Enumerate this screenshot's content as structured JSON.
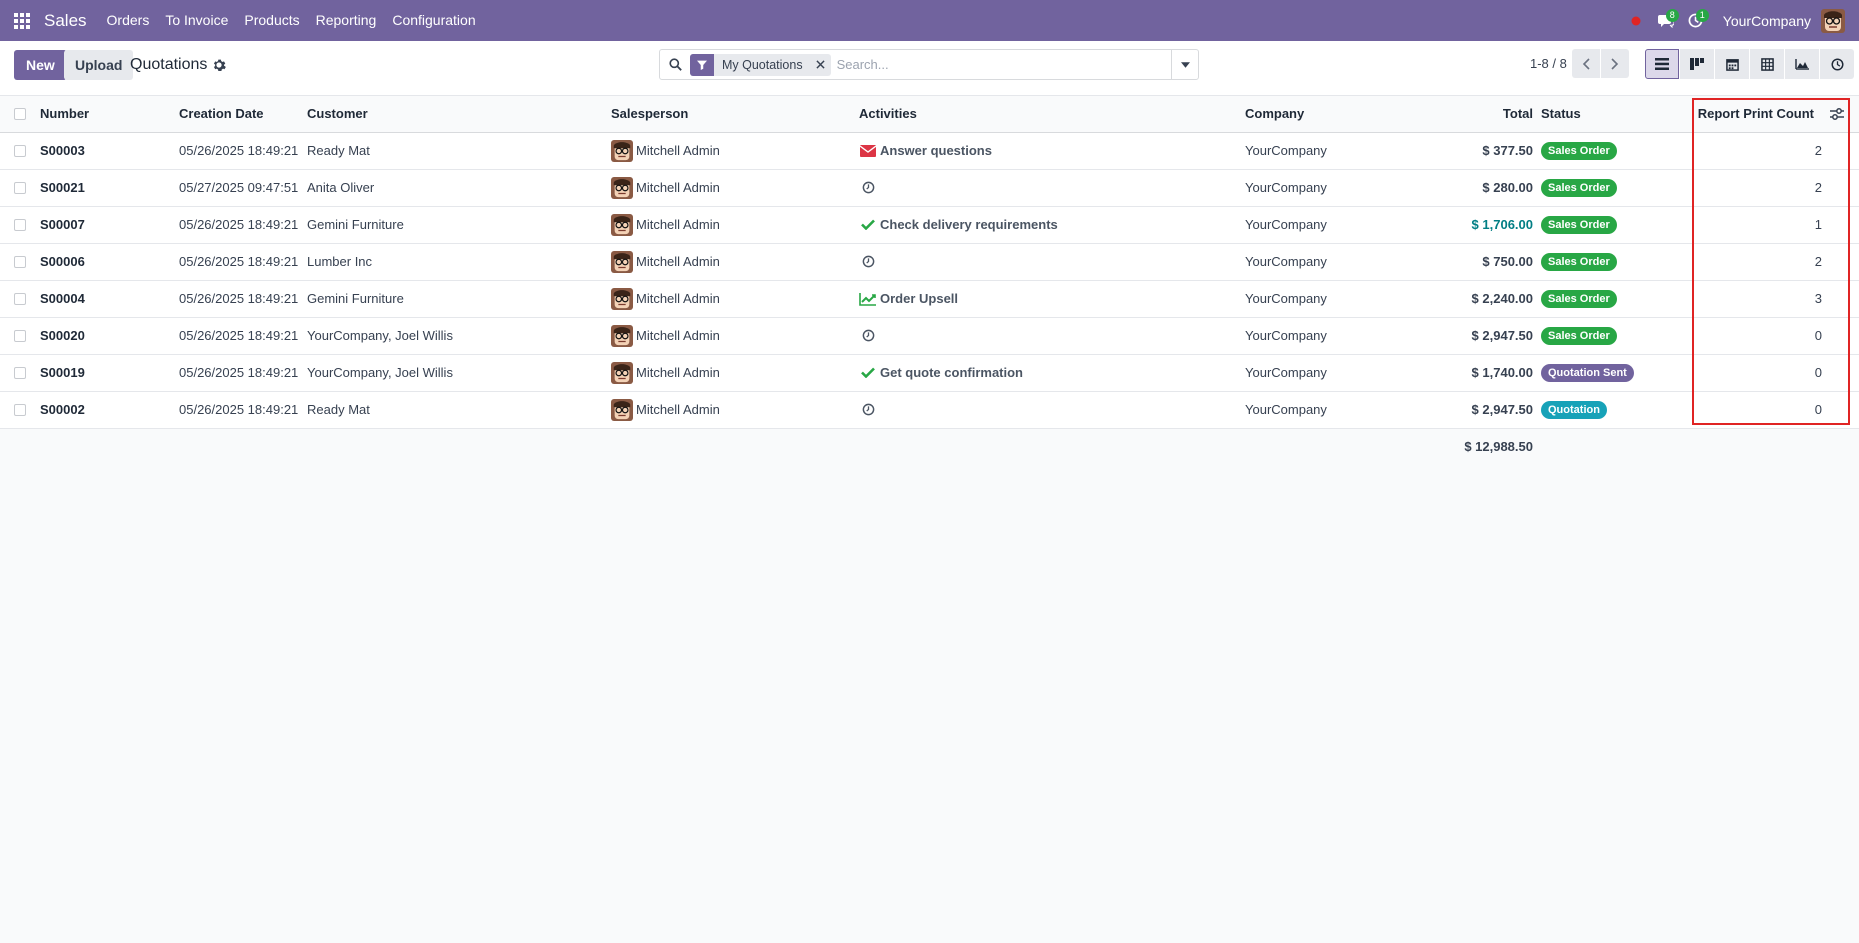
{
  "navbar": {
    "app_name": "Sales",
    "menu": [
      "Orders",
      "To Invoice",
      "Products",
      "Reporting",
      "Configuration"
    ],
    "messages_count": "8",
    "activities_count": "1",
    "company": "YourCompany"
  },
  "control_panel": {
    "new_label": "New",
    "upload_label": "Upload",
    "title": "Quotations",
    "search": {
      "facet_label": "My Quotations",
      "placeholder": "Search..."
    },
    "pager": "1-8 / 8"
  },
  "table": {
    "headers": {
      "number": "Number",
      "creation_date": "Creation Date",
      "customer": "Customer",
      "salesperson": "Salesperson",
      "activities": "Activities",
      "company": "Company",
      "total": "Total",
      "status": "Status",
      "report_print_count": "Report Print Count"
    },
    "rows": [
      {
        "number": "S00003",
        "date": "05/26/2025 18:49:21",
        "customer": "Ready Mat",
        "salesperson": "Mitchell Admin",
        "activity": "Answer questions",
        "activity_icon": "envelope-icon",
        "company": "YourCompany",
        "total": "$ 377.50",
        "status": "Sales Order",
        "count": "2"
      },
      {
        "number": "S00021",
        "date": "05/27/2025 09:47:51",
        "customer": "Anita Oliver",
        "salesperson": "Mitchell Admin",
        "activity": "",
        "activity_icon": "clock-icon",
        "company": "YourCompany",
        "total": "$ 280.00",
        "status": "Sales Order",
        "count": "2"
      },
      {
        "number": "S00007",
        "date": "05/26/2025 18:49:21",
        "customer": "Gemini Furniture",
        "salesperson": "Mitchell Admin",
        "activity": "Check delivery requirements",
        "activity_icon": "check-icon",
        "company": "YourCompany",
        "total": "$ 1,706.00",
        "status": "Sales Order",
        "count": "1"
      },
      {
        "number": "S00006",
        "date": "05/26/2025 18:49:21",
        "customer": "Lumber Inc",
        "salesperson": "Mitchell Admin",
        "activity": "",
        "activity_icon": "clock-icon",
        "company": "YourCompany",
        "total": "$ 750.00",
        "status": "Sales Order",
        "count": "2"
      },
      {
        "number": "S00004",
        "date": "05/26/2025 18:49:21",
        "customer": "Gemini Furniture",
        "salesperson": "Mitchell Admin",
        "activity": "Order Upsell",
        "activity_icon": "chart-line-icon",
        "company": "YourCompany",
        "total": "$ 2,240.00",
        "status": "Sales Order",
        "count": "3"
      },
      {
        "number": "S00020",
        "date": "05/26/2025 18:49:21",
        "customer": "YourCompany, Joel Willis",
        "salesperson": "Mitchell Admin",
        "activity": "",
        "activity_icon": "clock-icon",
        "company": "YourCompany",
        "total": "$ 2,947.50",
        "status": "Sales Order",
        "count": "0"
      },
      {
        "number": "S00019",
        "date": "05/26/2025 18:49:21",
        "customer": "YourCompany, Joel Willis",
        "salesperson": "Mitchell Admin",
        "activity": "Get quote confirmation",
        "activity_icon": "check-icon",
        "company": "YourCompany",
        "total": "$ 1,740.00",
        "status": "Quotation Sent",
        "count": "0"
      },
      {
        "number": "S00002",
        "date": "05/26/2025 18:49:21",
        "customer": "Ready Mat",
        "salesperson": "Mitchell Admin",
        "activity": "",
        "activity_icon": "clock-icon",
        "company": "YourCompany",
        "total": "$ 2,947.50",
        "status": "Quotation",
        "count": "0"
      }
    ],
    "sum_total": "$ 12,988.50"
  },
  "colors": {
    "brand": "#71639e",
    "sales_order": "#28a745",
    "quotation_sent": "#71639e",
    "quotation": "#17a2b8",
    "highlight_box": "#e02424"
  }
}
